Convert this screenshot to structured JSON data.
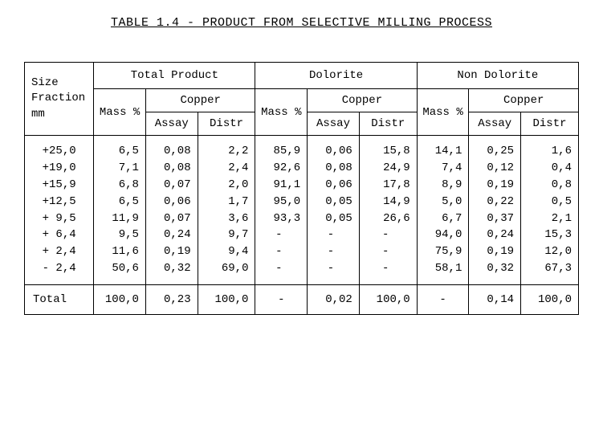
{
  "title": "TABLE 1.4 - PRODUCT FROM SELECTIVE MILLING PROCESS",
  "table": {
    "type": "table",
    "background_color": "#ffffff",
    "border_color": "#000000",
    "font_family": "Courier New",
    "font_size_pt": 11,
    "row_header_label": "Size\nFraction\nmm",
    "groups": [
      {
        "label": "Total Product",
        "mass_label": "Mass\n%",
        "copper_label": "Copper",
        "sub": [
          "Assay",
          "Distr"
        ]
      },
      {
        "label": "Dolorite",
        "mass_label": "Mass\n%",
        "copper_label": "Copper",
        "sub": [
          "Assay",
          "Distr"
        ]
      },
      {
        "label": "Non Dolorite",
        "mass_label": "Mass\n%",
        "copper_label": "Copper",
        "sub": [
          "Assay",
          "Distr"
        ]
      }
    ],
    "size_fractions": [
      "+25,0",
      "+19,0",
      "+15,9",
      "+12,5",
      "+ 9,5",
      "+ 6,4",
      "+ 2,4",
      "- 2,4"
    ],
    "rows": [
      {
        "size": "+25,0",
        "tp_mass": "6,5",
        "tp_assay": "0,08",
        "tp_distr": "2,2",
        "d_mass": "85,9",
        "d_assay": "0,06",
        "d_distr": "15,8",
        "nd_mass": "14,1",
        "nd_assay": "0,25",
        "nd_distr": "1,6"
      },
      {
        "size": "+19,0",
        "tp_mass": "7,1",
        "tp_assay": "0,08",
        "tp_distr": "2,4",
        "d_mass": "92,6",
        "d_assay": "0,08",
        "d_distr": "24,9",
        "nd_mass": "7,4",
        "nd_assay": "0,12",
        "nd_distr": "0,4"
      },
      {
        "size": "+15,9",
        "tp_mass": "6,8",
        "tp_assay": "0,07",
        "tp_distr": "2,0",
        "d_mass": "91,1",
        "d_assay": "0,06",
        "d_distr": "17,8",
        "nd_mass": "8,9",
        "nd_assay": "0,19",
        "nd_distr": "0,8"
      },
      {
        "size": "+12,5",
        "tp_mass": "6,5",
        "tp_assay": "0,06",
        "tp_distr": "1,7",
        "d_mass": "95,0",
        "d_assay": "0,05",
        "d_distr": "14,9",
        "nd_mass": "5,0",
        "nd_assay": "0,22",
        "nd_distr": "0,5"
      },
      {
        "size": "+ 9,5",
        "tp_mass": "11,9",
        "tp_assay": "0,07",
        "tp_distr": "3,6",
        "d_mass": "93,3",
        "d_assay": "0,05",
        "d_distr": "26,6",
        "nd_mass": "6,7",
        "nd_assay": "0,37",
        "nd_distr": "2,1"
      },
      {
        "size": "+ 6,4",
        "tp_mass": "9,5",
        "tp_assay": "0,24",
        "tp_distr": "9,7",
        "d_mass": "-",
        "d_assay": "-",
        "d_distr": "-",
        "nd_mass": "94,0",
        "nd_assay": "0,24",
        "nd_distr": "15,3"
      },
      {
        "size": "+ 2,4",
        "tp_mass": "11,6",
        "tp_assay": "0,19",
        "tp_distr": "9,4",
        "d_mass": "-",
        "d_assay": "-",
        "d_distr": "-",
        "nd_mass": "75,9",
        "nd_assay": "0,19",
        "nd_distr": "12,0"
      },
      {
        "size": "- 2,4",
        "tp_mass": "50,6",
        "tp_assay": "0,32",
        "tp_distr": "69,0",
        "d_mass": "-",
        "d_assay": "-",
        "d_distr": "-",
        "nd_mass": "58,1",
        "nd_assay": "0,32",
        "nd_distr": "67,3"
      }
    ],
    "total": {
      "label": "Total",
      "tp_mass": "100,0",
      "tp_assay": "0,23",
      "tp_distr": "100,0",
      "d_mass": "-",
      "d_assay": "0,02",
      "d_distr": "100,0",
      "nd_mass": "-",
      "nd_assay": "0,14",
      "nd_distr": "100,0"
    },
    "column_widths_pct": [
      12,
      9,
      9,
      9,
      9,
      9,
      9,
      9,
      9,
      9
    ],
    "column_alignment": [
      "center",
      "right",
      "right",
      "right",
      "right",
      "right",
      "right",
      "right",
      "right",
      "right"
    ]
  }
}
